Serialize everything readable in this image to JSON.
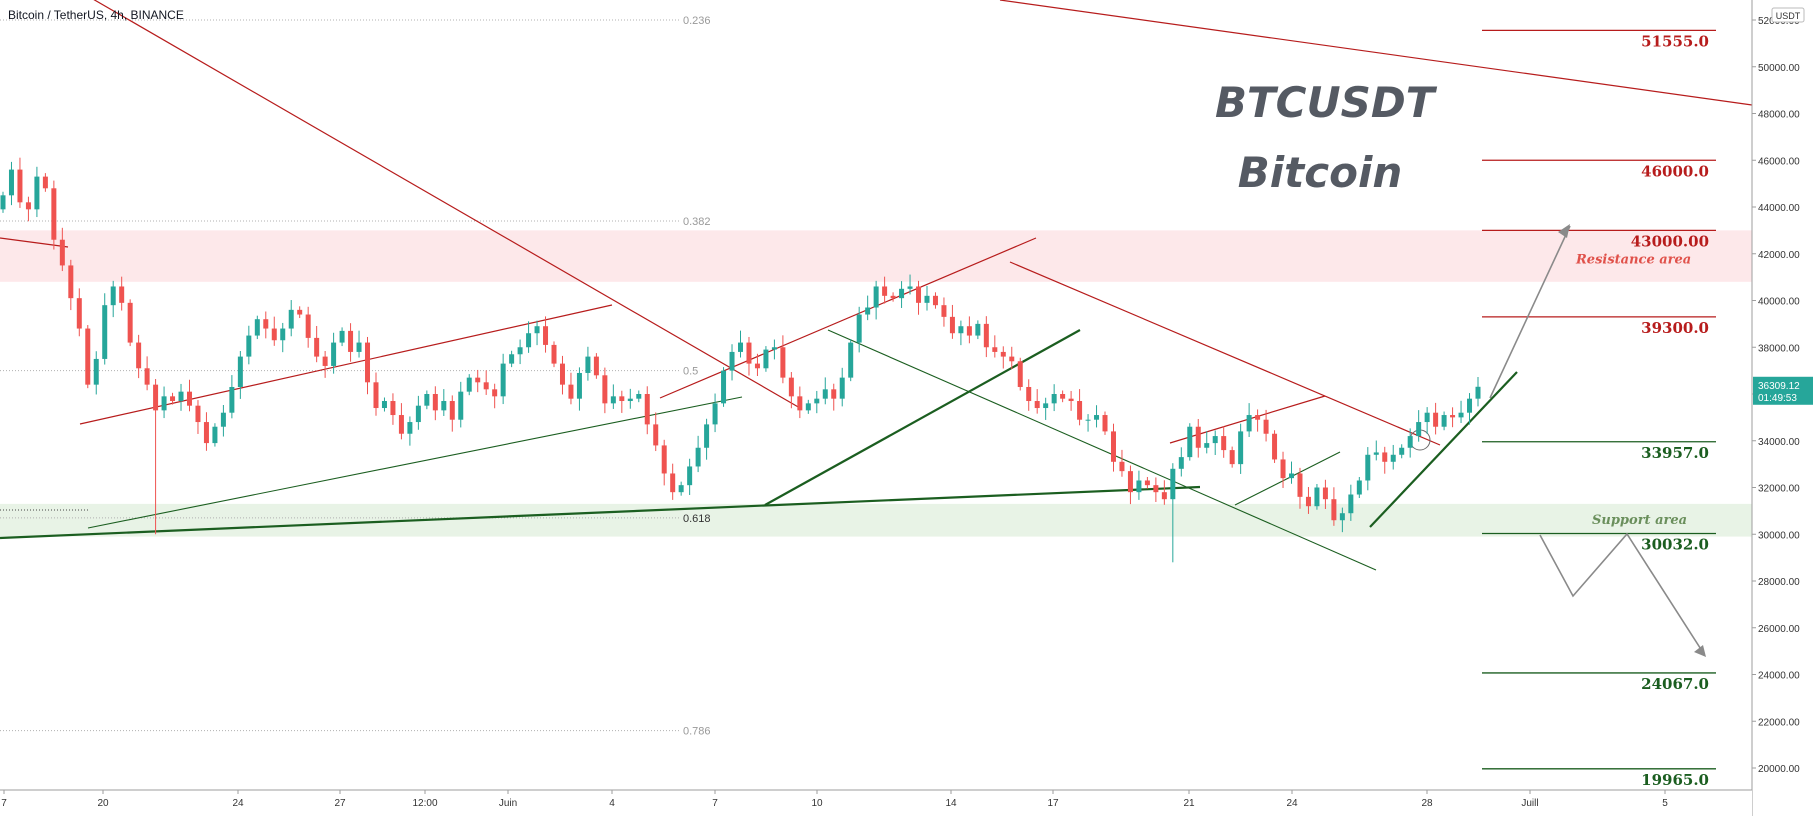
{
  "header": {
    "symbol": "Bitcoin / TetherUS, 4h, BINANCE"
  },
  "title": {
    "line1": "BTCUSDT",
    "line2": "Bitcoin"
  },
  "colors": {
    "up": "#26a69a",
    "down": "#ef5350",
    "resistance_line": "#b71c1c",
    "support_line": "#1b5e20",
    "resistance_zone": "#fde8ea",
    "support_zone": "#e8f3e6",
    "projection": "#8a8a8a",
    "fib": "#b0b0b0"
  },
  "chart_data": {
    "type": "candlestick",
    "symbol": "BTCUSDT",
    "interval": "4h",
    "exchange": "BINANCE",
    "y_axis": {
      "range": [
        19500,
        52500
      ],
      "ticks": [
        20000,
        22000,
        24000,
        26000,
        28000,
        30000,
        32000,
        34000,
        36000,
        38000,
        40000,
        42000,
        44000,
        46000,
        48000,
        50000,
        52000
      ],
      "tick_labels": [
        "20000.00",
        "22000.00",
        "24000.00",
        "26000.00",
        "28000.00",
        "30000.00",
        "32000.00",
        "34000.00",
        "36000.00",
        "38000.00",
        "40000.00",
        "42000.00",
        "44000.00",
        "46000.00",
        "48000.00",
        "50000.00",
        "52000.00"
      ],
      "currency_badge": "USDT"
    },
    "x_axis": {
      "tick_labels": [
        "7",
        "20",
        "24",
        "27",
        "12:00",
        "Juin",
        "4",
        "7",
        "10",
        "14",
        "17",
        "21",
        "24",
        "28",
        "Juill",
        "5"
      ]
    },
    "current_price": {
      "value": "36309.12",
      "countdown": "01:49:53"
    },
    "levels": [
      {
        "value": 51555.0,
        "label": "51555.0",
        "kind": "resistance"
      },
      {
        "value": 46000.0,
        "label": "46000.0",
        "kind": "resistance"
      },
      {
        "value": 43000.0,
        "label": "43000.00",
        "kind": "resistance"
      },
      {
        "value": 39300.0,
        "label": "39300.0",
        "kind": "resistance"
      },
      {
        "value": 33957.0,
        "label": "33957.0",
        "kind": "support"
      },
      {
        "value": 30032.0,
        "label": "30032.0",
        "kind": "support"
      },
      {
        "value": 24067.0,
        "label": "24067.0",
        "kind": "support"
      },
      {
        "value": 19965.0,
        "label": "19965.0",
        "kind": "support"
      }
    ],
    "fibonacci": [
      {
        "label": "0.236",
        "value": 52000
      },
      {
        "label": "0.382",
        "value": 43400
      },
      {
        "label": "0.5",
        "value": 37000
      },
      {
        "label": "0.618",
        "value": 30700
      },
      {
        "label": "0.786",
        "value": 21600
      }
    ],
    "zones": [
      {
        "label": "Resistance area",
        "from": 40800,
        "to": 43000,
        "kind": "resistance"
      },
      {
        "label": "Support area",
        "from": 29900,
        "to": 31300,
        "kind": "support"
      }
    ],
    "closes": [
      44500,
      45600,
      44200,
      43900,
      45300,
      44800,
      42600,
      41500,
      40100,
      38800,
      36400,
      37500,
      39800,
      40600,
      39900,
      38200,
      37100,
      36400,
      35300,
      35900,
      35700,
      36100,
      35500,
      34800,
      33900,
      34600,
      35200,
      36300,
      37600,
      38500,
      39200,
      38800,
      38300,
      38800,
      39600,
      39400,
      38400,
      37600,
      37200,
      38200,
      38700,
      37800,
      38200,
      36500,
      35400,
      35700,
      35100,
      34300,
      34800,
      35500,
      36000,
      35300,
      35700,
      34900,
      36100,
      36700,
      36500,
      36200,
      35900,
      37300,
      37700,
      38000,
      38600,
      38900,
      38100,
      37300,
      36400,
      35800,
      36900,
      37600,
      36800,
      35600,
      35900,
      35700,
      35800,
      36000,
      34700,
      33800,
      32600,
      31800,
      32100,
      32900,
      33700,
      34700,
      35600,
      37000,
      37800,
      38200,
      37300,
      37100,
      37900,
      38000,
      36700,
      35900,
      35300,
      35600,
      35800,
      36200,
      35800,
      36700,
      38200,
      39400,
      39700,
      40600,
      40200,
      40100,
      40500,
      40600,
      39900,
      40200,
      39800,
      39300,
      38600,
      38900,
      38500,
      39000,
      38000,
      37800,
      37600,
      37400,
      36300,
      35700,
      35400,
      35600,
      36000,
      35800,
      35700,
      34900,
      34900,
      35100,
      34400,
      33100,
      32700,
      31800,
      32300,
      32100,
      31800,
      31500,
      32800,
      33300,
      34600,
      33700,
      33900,
      34200,
      33600,
      33000,
      34400,
      35100,
      34900,
      34300,
      33200,
      32400,
      32600,
      31600,
      31200,
      32000,
      31500,
      30600,
      30900,
      31700,
      32300,
      33400,
      33500,
      33100,
      33400,
      33700,
      34200,
      34800,
      35200,
      34600,
      35100,
      35000,
      35200,
      35800,
      36309
    ]
  }
}
